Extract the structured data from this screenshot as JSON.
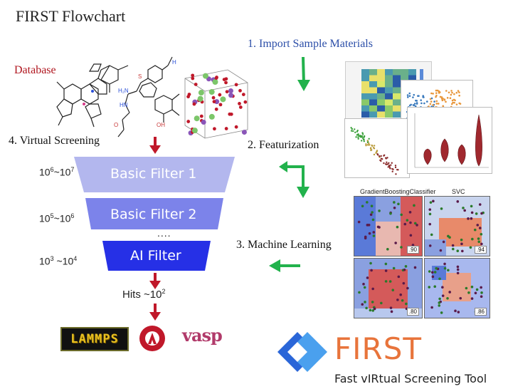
{
  "title": "FIRST Flowchart",
  "database_label": "Database",
  "steps": {
    "import": "1. Import Sample Materials",
    "featurization": "2. Featurization",
    "machine_learning": "3. Machine Learning",
    "virtual_screening": "4. Virtual Screening"
  },
  "funnel": {
    "filters": [
      "Basic Filter 1",
      "Basic Filter 2",
      "AI Filter"
    ],
    "ranges": [
      {
        "base": "10",
        "exp1": "6",
        "sep": "~",
        "base2": "10",
        "exp2": "7"
      },
      {
        "base": "10",
        "exp1": "5",
        "sep": "~",
        "base2": "10",
        "exp2": "6"
      },
      {
        "base": "10",
        "exp1": "3",
        "sep": " ~",
        "base2": "10",
        "exp2": "4"
      }
    ],
    "ellipsis": "....",
    "hits": {
      "text": "Hits ~10",
      "exp": "2"
    }
  },
  "ml_panels": {
    "titles": [
      "GradientBoostingClassifier",
      "SVC"
    ],
    "scores": [
      ".90",
      ".94",
      ".80",
      ".86"
    ]
  },
  "logos": {
    "lammps": "LAMMPS",
    "vasp": "vasp",
    "first_name": "FIRST",
    "first_subtitle": "Fast vIRtual Screening Tool"
  },
  "colors": {
    "database": "#b0161f",
    "step_blue": "#2b4ea8",
    "arrow_green": "#22b24c",
    "arrow_red": "#c0182a",
    "filter1": "#b3b7ee",
    "filter2": "#7c83ea",
    "filter_ai": "#2630e6",
    "first_orange": "#e8743b",
    "first_blue": "#2a66d8"
  }
}
